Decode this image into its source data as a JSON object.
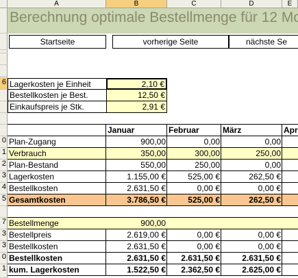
{
  "columns": [
    "A",
    "B",
    "C",
    "D",
    "E"
  ],
  "selected_column": "B",
  "title": "Berechnung optimale Bestellmenge für 12 Mo",
  "nav": {
    "start": "Startseite",
    "prev": "vorherige Seite",
    "next": "nächste Se"
  },
  "rows": [
    "",
    "",
    "",
    "",
    "",
    "",
    "6",
    "",
    "",
    "",
    "0",
    "1",
    "2",
    "3",
    "4",
    "5",
    "",
    "7",
    "3",
    "3",
    "0",
    "1"
  ],
  "selected_row": "6",
  "params": [
    {
      "label": "Lagerkosten je Einheit",
      "value": "2,10 €"
    },
    {
      "label": "Bestellkosten je Best.",
      "value": "12,50 €"
    },
    {
      "label": "Einkaufspreis je Stk.",
      "value": "2,91 €"
    }
  ],
  "months": [
    "Januar",
    "Februar",
    "März",
    "Apr"
  ],
  "table1": [
    {
      "label": "Plan-Zugang",
      "values": [
        "900,00",
        "0,00",
        "0,00"
      ]
    },
    {
      "label": "Verbrauch",
      "values": [
        "350,00",
        "300,00",
        "250,00"
      ]
    },
    {
      "label": "Plan-Bestand",
      "values": [
        "550,00",
        "250,00",
        "0,00"
      ]
    },
    {
      "label": "Lagerkosten",
      "values": [
        "1.155,00 €",
        "525,00 €",
        "262,50 €"
      ]
    },
    {
      "label": "Bestellkosten",
      "values": [
        "2.631,50 €",
        "0,00 €",
        "0,00 €"
      ]
    },
    {
      "label": "Gesamtkosten",
      "values": [
        "3.786,50 €",
        "525,00 €",
        "262,50 €"
      ]
    }
  ],
  "table2": [
    {
      "label": "Bestellmenge",
      "values": [
        "900,00",
        "",
        ""
      ]
    },
    {
      "label": "Bestellpreis",
      "values": [
        "2.619,00 €",
        "0,00 €",
        "0,00 €"
      ]
    },
    {
      "label": "Bestellkosten",
      "values": [
        "2.631,50 €",
        "0,00 €",
        "0,00 €"
      ]
    },
    {
      "label": "Bestellkosten",
      "values": [
        "2.631,50 €",
        "2.631,50 €",
        "2.631,50 €"
      ]
    },
    {
      "label": "kum. Lagerkosten",
      "values": [
        "1.522,50 €",
        "2.362,50 €",
        "2.625,00 €"
      ]
    }
  ],
  "colors": {
    "title_band": "#ccd7b3",
    "input_yellow": "#ffffc6",
    "total_orange": "#f9c690",
    "header_bg": "#f0efe6",
    "header_selected": "#f6cf7e"
  }
}
